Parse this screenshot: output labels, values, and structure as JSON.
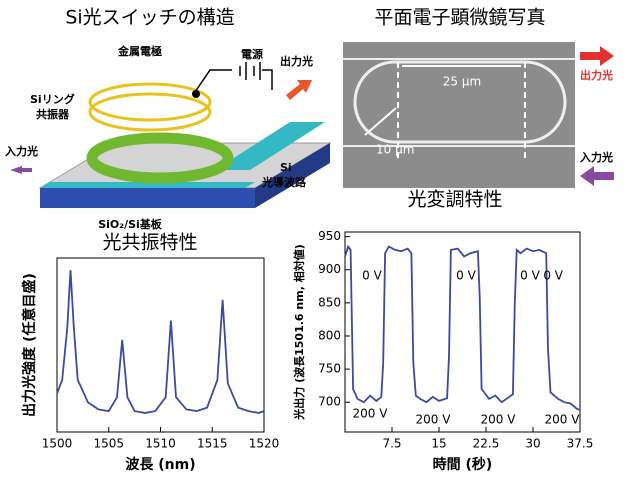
{
  "structure": {
    "title": "Si光スイッチの構造",
    "labels": {
      "metal_electrode": "金属電極",
      "power_source": "電源",
      "output_light": "出力光",
      "ring_line1": "Siリング",
      "ring_line2": "共振器",
      "input_light": "入力光",
      "waveguide_line1": "Si",
      "waveguide_line2": "光導波路",
      "substrate": "SiO₂/Si基板"
    }
  },
  "micrograph": {
    "title": "平面電子顕微鏡写真",
    "length_label": "25 μm",
    "radius_label": "10 μm",
    "output_light": "出力光",
    "input_light": "入力光"
  },
  "chart_data": [
    {
      "type": "line",
      "title": "光共振特性",
      "xlabel": "波長 (nm)",
      "ylabel": "出力光強度 (任意目盛)",
      "x": [
        1500,
        1500.5,
        1501,
        1501.3,
        1501.6,
        1502,
        1503,
        1504,
        1505,
        1505.8,
        1506.3,
        1506.8,
        1507.5,
        1508.5,
        1509.5,
        1510.5,
        1511,
        1511.5,
        1512.5,
        1513.5,
        1514.5,
        1515.5,
        1516,
        1516.5,
        1517.5,
        1518.5,
        1519.5,
        1520
      ],
      "values": [
        0.22,
        0.3,
        0.6,
        0.93,
        0.62,
        0.3,
        0.17,
        0.13,
        0.12,
        0.2,
        0.53,
        0.2,
        0.12,
        0.11,
        0.12,
        0.2,
        0.64,
        0.2,
        0.13,
        0.12,
        0.14,
        0.3,
        0.76,
        0.28,
        0.14,
        0.12,
        0.11,
        0.12
      ],
      "color": "#3a4b9f",
      "xlim": [
        1500,
        1520
      ],
      "xticks": [
        1500,
        1505,
        1510,
        1515,
        1520
      ],
      "ylim": [
        0,
        1
      ]
    },
    {
      "type": "line",
      "title": "光変調特性",
      "xlabel": "時間 (秒)",
      "ylabel": "光出力 (波長1501.6 nm, 相対値)",
      "x": [
        0,
        0.5,
        0.9,
        1.3,
        2,
        3,
        4,
        5,
        5.8,
        6.1,
        6.4,
        7,
        8,
        9,
        10,
        10.6,
        10.9,
        11.3,
        12,
        13,
        14,
        15,
        16.3,
        16.6,
        16.9,
        18,
        19,
        20,
        21.2,
        21.5,
        21.8,
        23,
        24,
        25,
        26.8,
        27.1,
        27.4,
        28,
        29,
        30,
        31,
        32.1,
        32.4,
        32.8,
        34,
        35,
        36,
        37,
        37.5
      ],
      "values": [
        920,
        935,
        930,
        720,
        705,
        700,
        710,
        702,
        708,
        760,
        925,
        935,
        930,
        928,
        932,
        925,
        760,
        710,
        705,
        700,
        708,
        702,
        706,
        770,
        930,
        932,
        920,
        925,
        928,
        860,
        720,
        705,
        710,
        700,
        712,
        850,
        930,
        925,
        932,
        928,
        930,
        925,
        780,
        715,
        705,
        700,
        698,
        690,
        688
      ],
      "color": "#3a4b9f",
      "xlim": [
        0,
        37.5
      ],
      "xticks": [
        7.5,
        15,
        22.5,
        30,
        37.5
      ],
      "ylim": [
        655,
        957
      ],
      "yticks": [
        700,
        750,
        800,
        850,
        900,
        950
      ],
      "annotations": [
        "0 V",
        "0 V",
        "0 V",
        "0 V",
        "200 V",
        "200 V",
        "200 V",
        "200 V"
      ]
    }
  ]
}
